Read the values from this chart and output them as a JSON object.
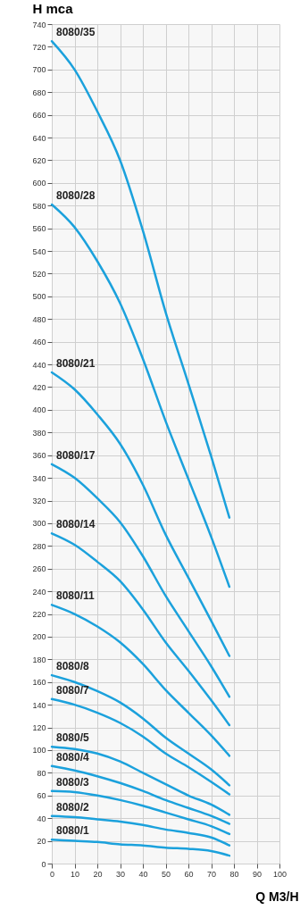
{
  "chart_data": {
    "type": "line",
    "xlabel": "Q M3/H",
    "ylabel": "H mca",
    "x": [
      0,
      10,
      20,
      30,
      40,
      50,
      60,
      70,
      78
    ],
    "xlim": [
      0,
      100
    ],
    "xticks": [
      0,
      10,
      20,
      30,
      40,
      50,
      60,
      70,
      80,
      90,
      100
    ],
    "ylim": [
      0,
      740
    ],
    "yticks": [
      0,
      20,
      40,
      60,
      80,
      100,
      120,
      140,
      160,
      180,
      200,
      220,
      240,
      260,
      280,
      300,
      320,
      340,
      360,
      380,
      400,
      420,
      440,
      460,
      480,
      500,
      520,
      540,
      560,
      580,
      600,
      620,
      640,
      660,
      680,
      700,
      720,
      740
    ],
    "grid": true,
    "series": [
      {
        "name": "8080/35",
        "color": "#1ba1dc",
        "values": [
          725,
          700,
          663,
          620,
          558,
          486,
          423,
          359,
          305
        ]
      },
      {
        "name": "8080/28",
        "color": "#1ba1dc",
        "values": [
          581,
          561,
          531,
          494,
          445,
          390,
          339,
          288,
          244
        ]
      },
      {
        "name": "8080/21",
        "color": "#1ba1dc",
        "values": [
          433,
          418,
          396,
          370,
          334,
          290,
          252,
          214,
          183
        ]
      },
      {
        "name": "8080/17",
        "color": "#1ba1dc",
        "values": [
          352,
          340,
          322,
          301,
          271,
          236,
          205,
          174,
          147
        ]
      },
      {
        "name": "8080/14",
        "color": "#1ba1dc",
        "values": [
          291,
          281,
          266,
          249,
          224,
          195,
          170,
          144,
          122
        ]
      },
      {
        "name": "8080/11",
        "color": "#1ba1dc",
        "values": [
          228,
          220,
          209,
          195,
          176,
          153,
          133,
          113,
          95
        ]
      },
      {
        "name": "8080/8",
        "color": "#1ba1dc",
        "values": [
          166,
          160,
          152,
          142,
          128,
          111,
          97,
          83,
          69
        ]
      },
      {
        "name": "8080/7",
        "color": "#1ba1dc",
        "values": [
          145,
          140,
          133,
          124,
          112,
          97,
          85,
          72,
          61
        ]
      },
      {
        "name": "8080/5",
        "color": "#1ba1dc",
        "values": [
          103,
          101,
          97,
          90,
          80,
          70,
          60,
          52,
          43
        ]
      },
      {
        "name": "8080/4",
        "color": "#1ba1dc",
        "values": [
          86,
          82,
          77,
          71,
          64,
          56,
          49,
          42,
          35
        ]
      },
      {
        "name": "8080/3",
        "color": "#1ba1dc",
        "values": [
          64,
          63,
          60,
          56,
          51,
          45,
          39,
          33,
          26
        ]
      },
      {
        "name": "8080/2",
        "color": "#1ba1dc",
        "values": [
          42,
          41,
          39,
          37,
          34,
          30,
          27,
          23,
          16
        ]
      },
      {
        "name": "8080/1",
        "color": "#1ba1dc",
        "values": [
          21,
          20,
          19,
          17,
          16,
          14,
          13,
          11,
          7
        ]
      }
    ]
  }
}
